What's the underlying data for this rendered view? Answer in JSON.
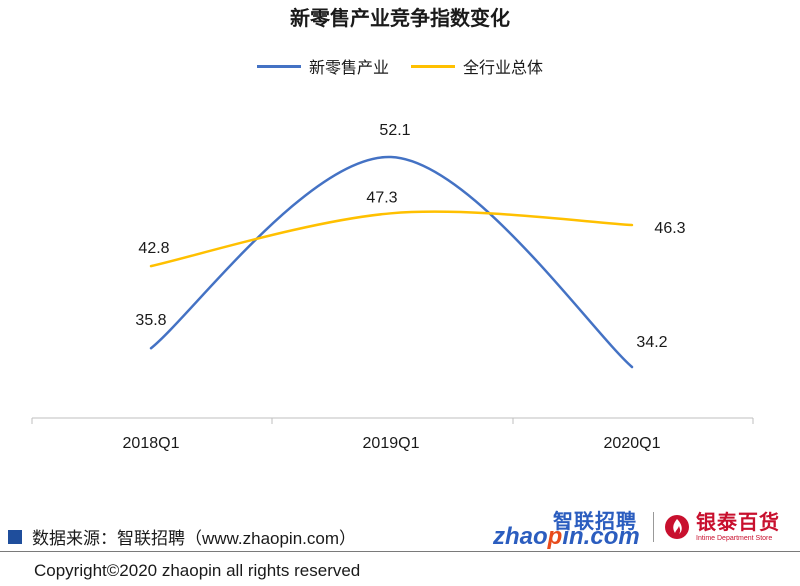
{
  "chart_data": {
    "type": "line",
    "title": "新零售产业竞争指数变化",
    "categories": [
      "2018Q1",
      "2019Q1",
      "2020Q1"
    ],
    "series": [
      {
        "name": "新零售产业",
        "values": [
          35.8,
          52.1,
          34.2
        ],
        "color": "#4472c4"
      },
      {
        "name": "全行业总体",
        "values": [
          42.8,
          47.3,
          46.3
        ],
        "color": "#ffc000"
      }
    ],
    "ylim": [
      20,
      55
    ],
    "grid": false,
    "legend": "top",
    "smooth": true,
    "data_labels": true
  },
  "footer": {
    "source": "数据来源：智联招聘（www.zhaopin.com）",
    "copyright": "Copyright©2020 zhaopin all rights reserved",
    "source_marker_color": "#1f4e9c"
  },
  "logos": {
    "zhaopin_cn": "智联招聘",
    "zhaopin_en_pre": "zhao",
    "zhaopin_en_o": "p",
    "zhaopin_en_post": "in.com",
    "intime_cn": "银泰百货",
    "intime_en": "Intime Department Store",
    "intime_icon": "intime-flame-icon"
  }
}
